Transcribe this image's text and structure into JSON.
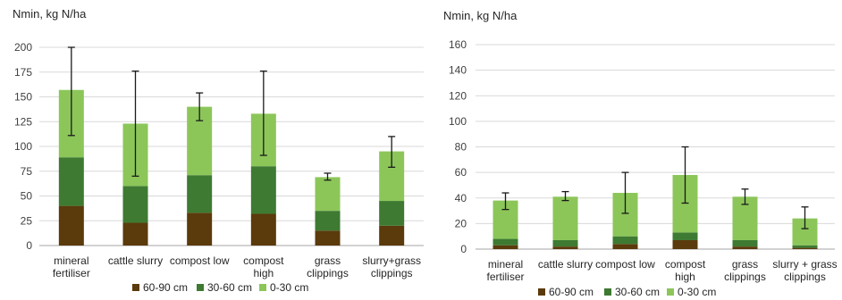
{
  "colors": {
    "s60_90": "#5b3a0b",
    "s30_60": "#3e7a32",
    "s0_30": "#8cc659",
    "grid": "#d9d9d9",
    "axis": "#a6a6a6",
    "error": "#1a1a1a"
  },
  "chart_data": [
    {
      "type": "bar",
      "stacked": true,
      "ylabel": "Nmin, kg N/ha",
      "ylim": [
        0,
        200
      ],
      "yticks": [
        "0",
        "25",
        "50",
        "75",
        "100",
        "125",
        "150",
        "175",
        "200"
      ],
      "ytick_values": [
        0,
        25,
        50,
        75,
        100,
        125,
        150,
        175,
        200
      ],
      "grid": true,
      "legend_position": "bottom",
      "categories": [
        [
          "mineral",
          "fertiliser"
        ],
        [
          "cattle slurry"
        ],
        [
          "compost low"
        ],
        [
          "compost",
          "high"
        ],
        [
          "grass",
          "clippings"
        ],
        [
          "slurry+grass",
          "clippings"
        ]
      ],
      "series": [
        {
          "name": "60-90 cm",
          "values": [
            40,
            23,
            33,
            32,
            15,
            20
          ]
        },
        {
          "name": "30-60 cm",
          "values": [
            49,
            37,
            38,
            48,
            20,
            25
          ]
        },
        {
          "name": "0-30 cm",
          "values": [
            68,
            63,
            69,
            53,
            34,
            50
          ]
        }
      ],
      "error_bars": [
        {
          "low": 111,
          "high": 200
        },
        {
          "low": 70,
          "high": 176
        },
        {
          "low": 126,
          "high": 154
        },
        {
          "low": 91,
          "high": 176
        },
        {
          "low": 66,
          "high": 73
        },
        {
          "low": 79,
          "high": 110
        }
      ]
    },
    {
      "type": "bar",
      "stacked": true,
      "ylabel": "Nmin, kg N/ha",
      "ylim": [
        0,
        160
      ],
      "yticks": [
        "0",
        "20",
        "40",
        "60",
        "80",
        "100",
        "120",
        "140",
        "160"
      ],
      "ytick_values": [
        0,
        20,
        40,
        60,
        80,
        100,
        120,
        140,
        160
      ],
      "grid": true,
      "legend_position": "bottom",
      "categories": [
        [
          "mineral",
          "fertiliser"
        ],
        [
          "cattle slurry"
        ],
        [
          "compost low"
        ],
        [
          "compost",
          "high"
        ],
        [
          "grass",
          "clippings"
        ],
        [
          "slurry + grass",
          "clippings"
        ]
      ],
      "series": [
        {
          "name": "60-90 cm",
          "values": [
            3,
            2,
            4,
            7,
            2,
            1
          ]
        },
        {
          "name": "30-60 cm",
          "values": [
            5,
            5,
            6,
            6,
            5,
            2
          ]
        },
        {
          "name": "0-30 cm",
          "values": [
            30,
            34,
            34,
            45,
            34,
            21
          ]
        }
      ],
      "error_bars": [
        {
          "low": 31,
          "high": 44
        },
        {
          "low": 38,
          "high": 45
        },
        {
          "low": 28,
          "high": 60
        },
        {
          "low": 36,
          "high": 80
        },
        {
          "low": 35,
          "high": 47
        },
        {
          "low": 16,
          "high": 33
        }
      ]
    }
  ]
}
